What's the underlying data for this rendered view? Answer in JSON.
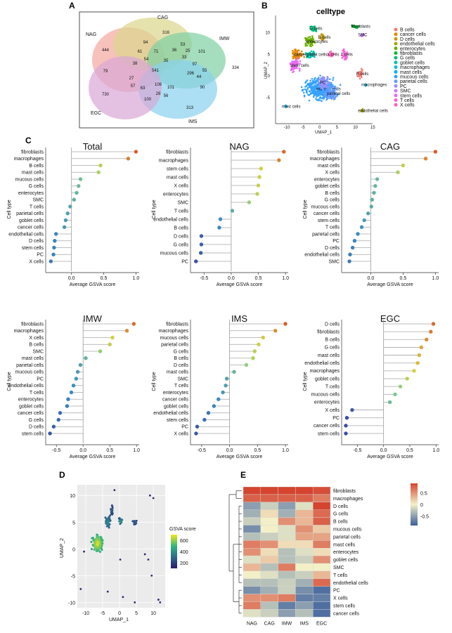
{
  "panel_labels": {
    "A": "A",
    "B": "B",
    "C": "C",
    "D": "D",
    "E": "E"
  },
  "colors": {
    "low": "#3a5f9c",
    "mid": "#f3f0c8",
    "high": "#d4442f"
  },
  "venn": {
    "sets": [
      {
        "name": "NAG",
        "color": "#f4a6a0"
      },
      {
        "name": "CAG",
        "color": "#dcd68c"
      },
      {
        "name": "IMW",
        "color": "#7fd0a2"
      },
      {
        "name": "IMS",
        "color": "#89d2ee"
      },
      {
        "name": "EGC",
        "color": "#d8a7d6"
      }
    ],
    "counts": [
      "444",
      "316",
      "334",
      "313",
      "730",
      "94",
      "61",
      "53",
      "101",
      "25",
      "79",
      "71",
      "36",
      "97",
      "55",
      "38",
      "54",
      "33",
      "541",
      "35",
      "27",
      "296",
      "44",
      "57",
      "63",
      "108",
      "101",
      "90",
      "100",
      "28",
      "56"
    ]
  },
  "umap": {
    "title": "celltype",
    "xlabel": "UMAP_1",
    "ylabel": "UMAP_2",
    "xticks": [
      "-10",
      "-5",
      "0",
      "5",
      "10",
      "15"
    ],
    "yticks": [
      "10",
      "5",
      "0",
      "-5"
    ],
    "clusters": [
      {
        "name": "B cells",
        "color": "#f8766d",
        "cx": 11.5,
        "cy": 0.5
      },
      {
        "name": "cancer cells",
        "color": "#e58700",
        "cx": -6.5,
        "cy": 5
      },
      {
        "name": "D cells",
        "color": "#c99800",
        "cx": 0.5,
        "cy": 9
      },
      {
        "name": "endothelial cells",
        "color": "#a3a500",
        "cx": 12,
        "cy": -8
      },
      {
        "name": "enterocytes",
        "color": "#6bb100",
        "cx": -3,
        "cy": 8
      },
      {
        "name": "fibroblasts",
        "color": "#00ba38",
        "cx": 10,
        "cy": 11.5
      },
      {
        "name": "G cells",
        "color": "#00bf7d",
        "cx": -2,
        "cy": 11
      },
      {
        "name": "goblet cells",
        "color": "#00c0af",
        "cx": -3,
        "cy": 5
      },
      {
        "name": "macrophages",
        "color": "#00bcd8",
        "cx": 13,
        "cy": -2
      },
      {
        "name": "mast cells",
        "color": "#00b0f6",
        "cx": -10,
        "cy": -7
      },
      {
        "name": "mucous cells",
        "color": "#35a2ff",
        "cx": 0,
        "cy": -3
      },
      {
        "name": "parietal cells",
        "color": "#619cff",
        "cx": 3,
        "cy": -4
      },
      {
        "name": "PC",
        "color": "#9590ff",
        "cx": 1,
        "cy": -1.5
      },
      {
        "name": "SMC",
        "color": "#c77cff",
        "cx": 12,
        "cy": 9.5
      },
      {
        "name": "stem cells",
        "color": "#e76bf3",
        "cx": -7.5,
        "cy": 2.5
      },
      {
        "name": "T cells",
        "color": "#fa62db",
        "cx": 7,
        "cy": 5
      },
      {
        "name": "X cells",
        "color": "#ff62bc",
        "cx": 3,
        "cy": 5
      }
    ]
  },
  "chart_data": [
    {
      "type": "lollipop",
      "title": "Total",
      "ylabel": "Cell type",
      "xlabel": "Average GSVA score",
      "xlim": [
        -0.4,
        1.05
      ],
      "xticks": [
        "0.0",
        "0.5",
        "1.0"
      ],
      "categories": [
        "fibroblasts",
        "macrophages",
        "B cells",
        "mast cells",
        "mucous cells",
        "G cells",
        "enterocytes",
        "SMC",
        "T cells",
        "parietal cells",
        "goblet cells",
        "cancer cells",
        "endothelial cells",
        "D cells",
        "stem cells",
        "PC",
        "X cells"
      ],
      "values": [
        1.0,
        0.88,
        0.45,
        0.42,
        0.14,
        0.11,
        0.08,
        0.04,
        -0.02,
        -0.06,
        -0.09,
        -0.11,
        -0.24,
        -0.26,
        -0.27,
        -0.28,
        -0.32
      ]
    },
    {
      "type": "lollipop",
      "title": "NAG",
      "ylabel": "Cell type",
      "xlabel": "Average GSVA score",
      "xlim": [
        -0.75,
        1.05
      ],
      "xticks": [
        "-0.5",
        "0.0",
        "0.5",
        "1.0"
      ],
      "categories": [
        "fibroblasts",
        "macrophages",
        "stem cells",
        "mast cells",
        "X cells",
        "enterocytes",
        "SMC",
        "T cells",
        "endothelial cells",
        "B cells",
        "D cells",
        "G cells",
        "mucous cells",
        "PC"
      ],
      "values": [
        0.97,
        0.88,
        0.55,
        0.52,
        0.5,
        0.48,
        0.33,
        0.02,
        -0.2,
        -0.22,
        -0.55,
        -0.55,
        -0.56,
        -0.65
      ]
    },
    {
      "type": "lollipop",
      "title": "CAG",
      "ylabel": "Cell type",
      "xlabel": "Average GSVA score",
      "xlim": [
        -0.45,
        1.05
      ],
      "xticks": [
        "0.0",
        "0.5",
        "1.0"
      ],
      "categories": [
        "fibroblasts",
        "macrophages",
        "mast cells",
        "X cells",
        "enterocytes",
        "goblet cells",
        "B cells",
        "G cells",
        "mucous cells",
        "cancer cells",
        "stem cells",
        "T cells",
        "parietal cells",
        "PC",
        "D cells",
        "endothelial cells",
        "SMC"
      ],
      "values": [
        1.0,
        0.85,
        0.5,
        0.42,
        0.1,
        0.07,
        0.05,
        0.02,
        0.01,
        -0.04,
        -0.1,
        -0.14,
        -0.2,
        -0.25,
        -0.28,
        -0.32,
        -0.33
      ]
    },
    {
      "type": "lollipop",
      "title": "IMW",
      "ylabel": "Cell type",
      "xlabel": "Average GSVA score",
      "xlim": [
        -0.7,
        1.05
      ],
      "xticks": [
        "-0.5",
        "0.0",
        "0.5",
        "1.0"
      ],
      "categories": [
        "fibroblasts",
        "macrophages",
        "X cells",
        "B cells",
        "SMC",
        "mast cells",
        "parietal cells",
        "mucous cells",
        "PC",
        "endothelial cells",
        "T cells",
        "enterocytes",
        "goblet cells",
        "cancer cells",
        "G cells",
        "D cells",
        "stem cells"
      ],
      "values": [
        0.95,
        0.82,
        0.55,
        0.5,
        0.32,
        0.05,
        -0.05,
        -0.1,
        -0.13,
        -0.18,
        -0.22,
        -0.28,
        -0.3,
        -0.43,
        -0.46,
        -0.55,
        -0.62
      ]
    },
    {
      "type": "lollipop",
      "title": "IMS",
      "ylabel": "Cell type",
      "xlabel": "Average GSVA score",
      "xlim": [
        -0.7,
        1.05
      ],
      "xticks": [
        "-0.5",
        "0.0",
        "0.5",
        "1.0"
      ],
      "categories": [
        "fibroblasts",
        "macrophages",
        "mucous cells",
        "parietal cells",
        "G cells",
        "B cells",
        "D cells",
        "mast cells",
        "SMC",
        "T cells",
        "enterocytes",
        "cancer cells",
        "goblet cells",
        "endothelial cells",
        "stem cells",
        "PC",
        "X cells"
      ],
      "values": [
        1.0,
        0.82,
        0.6,
        0.52,
        0.45,
        0.42,
        0.3,
        0.08,
        -0.05,
        -0.07,
        -0.12,
        -0.2,
        -0.28,
        -0.38,
        -0.45,
        -0.58,
        -0.6
      ]
    },
    {
      "type": "lollipop",
      "title": "EGC",
      "ylabel": "Cell type",
      "xlabel": "Average GSVA score",
      "xlim": [
        -0.8,
        1.05
      ],
      "xticks": [
        "-0.5",
        "0.0",
        "0.5",
        "1.0"
      ],
      "categories": [
        "D cells",
        "fibroblasts",
        "B cells",
        "G cells",
        "mast cells",
        "endothelial cells",
        "macrophages",
        "goblet cells",
        "T cells",
        "mucous cells",
        "enterocytes",
        "X cells",
        "PC",
        "cancer cells",
        "stem cells"
      ],
      "values": [
        0.95,
        0.9,
        0.82,
        0.72,
        0.68,
        0.65,
        0.58,
        0.45,
        0.32,
        0.22,
        0.12,
        -0.6,
        -0.7,
        -0.72,
        -0.72
      ]
    },
    {
      "type": "scatter",
      "xlabel": "UMAP_1",
      "ylabel": "UMAP_2",
      "legend_title": "GSVA score",
      "xticks": [
        "-10",
        "-5",
        "0",
        "5",
        "10"
      ],
      "yticks": [
        "10",
        "5",
        "0",
        "-5",
        "-10"
      ],
      "legend_ticks": [
        "600",
        "400",
        "200"
      ],
      "color_range": [
        100,
        700
      ]
    },
    {
      "type": "heatmap",
      "columns": [
        "NAG",
        "CAG",
        "IMW",
        "IMS",
        "EGC"
      ],
      "rows": [
        "fibroblasts",
        "macrophages",
        "D cells",
        "G cells",
        "B cells",
        "mucous cells",
        "parietal cells",
        "mast cells",
        "enterocytes",
        "goblet cells",
        "SMC",
        "T cells",
        "endothelial cells",
        "PC",
        "X cells",
        "stem cells",
        "cancer cells"
      ],
      "values": [
        [
          0.9,
          0.9,
          0.9,
          0.9,
          0.85
        ],
        [
          0.75,
          0.75,
          0.75,
          0.75,
          0.6
        ],
        [
          -0.5,
          -0.2,
          -0.5,
          -0.1,
          0.9
        ],
        [
          -0.4,
          0.1,
          -0.4,
          0.3,
          0.7
        ],
        [
          -0.2,
          0.0,
          0.5,
          0.3,
          0.75
        ],
        [
          -0.6,
          0.0,
          -0.1,
          0.5,
          0.2
        ],
        [
          -0.3,
          -0.2,
          -0.1,
          0.4,
          0.4
        ],
        [
          0.6,
          0.5,
          0.1,
          0.1,
          0.6
        ],
        [
          0.5,
          0.1,
          -0.3,
          -0.1,
          0.1
        ],
        [
          -0.1,
          0.2,
          -0.3,
          -0.2,
          0.5
        ],
        [
          0.3,
          -0.3,
          0.6,
          0.0,
          0.0
        ],
        [
          0.0,
          -0.1,
          -0.3,
          -0.2,
          0.3
        ],
        [
          -0.3,
          -0.3,
          -0.2,
          -0.4,
          0.7
        ],
        [
          -0.6,
          -0.4,
          -0.2,
          -0.6,
          -0.8
        ],
        [
          0.5,
          0.5,
          0.6,
          -0.7,
          -0.7
        ],
        [
          0.6,
          -0.3,
          -0.7,
          -0.5,
          -0.8
        ],
        [
          -0.1,
          -0.2,
          -0.5,
          -0.3,
          -0.8
        ]
      ],
      "legend_ticks": [
        "0.5",
        "0",
        "-0.5"
      ],
      "color_range": [
        -0.9,
        0.9
      ]
    }
  ]
}
